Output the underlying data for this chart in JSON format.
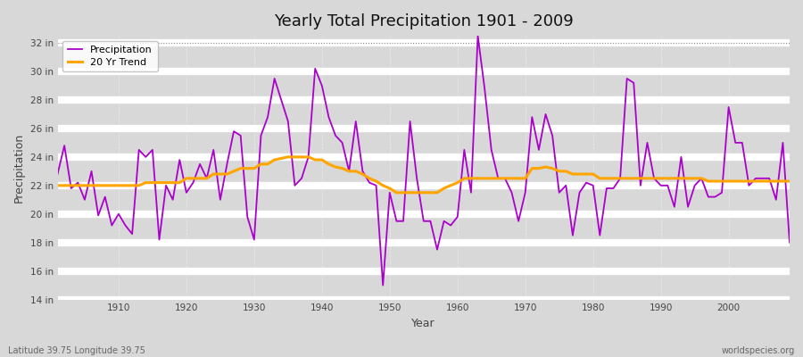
{
  "title": "Yearly Total Precipitation 1901 - 2009",
  "xlabel": "Year",
  "ylabel": "Precipitation",
  "subtitle_left": "Latitude 39.75 Longitude 39.75",
  "subtitle_right": "worldspecies.org",
  "ylim": [
    14,
    32.5
  ],
  "yticks": [
    14,
    16,
    18,
    20,
    22,
    24,
    26,
    28,
    30,
    32
  ],
  "ytick_labels": [
    "14 in",
    "16 in",
    "18 in",
    "20 in",
    "22 in",
    "24 in",
    "26 in",
    "28 in",
    "30 in",
    "32 in"
  ],
  "xticks": [
    1910,
    1920,
    1930,
    1940,
    1950,
    1960,
    1970,
    1980,
    1990,
    2000
  ],
  "fig_bg_color": "#d8d8d8",
  "plot_bg_color": "#d8d8d8",
  "precip_color": "#aa00cc",
  "trend_color": "#ffa500",
  "legend_labels": [
    "Precipitation",
    "20 Yr Trend"
  ],
  "years": [
    1901,
    1902,
    1903,
    1904,
    1905,
    1906,
    1907,
    1908,
    1909,
    1910,
    1911,
    1912,
    1913,
    1914,
    1915,
    1916,
    1917,
    1918,
    1919,
    1920,
    1921,
    1922,
    1923,
    1924,
    1925,
    1926,
    1927,
    1928,
    1929,
    1930,
    1931,
    1932,
    1933,
    1934,
    1935,
    1936,
    1937,
    1938,
    1939,
    1940,
    1941,
    1942,
    1943,
    1944,
    1945,
    1946,
    1947,
    1948,
    1949,
    1950,
    1951,
    1952,
    1953,
    1954,
    1955,
    1956,
    1957,
    1958,
    1959,
    1960,
    1961,
    1962,
    1963,
    1964,
    1965,
    1966,
    1967,
    1968,
    1969,
    1970,
    1971,
    1972,
    1973,
    1974,
    1975,
    1976,
    1977,
    1978,
    1979,
    1980,
    1981,
    1982,
    1983,
    1984,
    1985,
    1986,
    1987,
    1988,
    1989,
    1990,
    1991,
    1992,
    1993,
    1994,
    1995,
    1996,
    1997,
    1998,
    1999,
    2000,
    2001,
    2002,
    2003,
    2004,
    2005,
    2006,
    2007,
    2008,
    2009
  ],
  "precip": [
    22.8,
    24.8,
    21.8,
    22.2,
    21.0,
    23.0,
    19.9,
    21.2,
    19.2,
    20.0,
    19.2,
    18.6,
    24.5,
    24.0,
    24.5,
    18.2,
    22.0,
    21.0,
    23.8,
    21.5,
    22.2,
    23.5,
    22.5,
    24.5,
    21.0,
    23.5,
    25.8,
    25.5,
    19.8,
    18.2,
    25.5,
    26.8,
    29.5,
    28.0,
    26.5,
    22.0,
    22.5,
    24.0,
    30.2,
    29.0,
    26.8,
    25.5,
    25.0,
    23.0,
    26.5,
    23.0,
    22.2,
    22.0,
    15.0,
    21.5,
    19.5,
    19.5,
    26.5,
    22.5,
    19.5,
    19.5,
    17.5,
    19.5,
    19.2,
    19.8,
    24.5,
    21.5,
    32.5,
    28.8,
    24.5,
    22.5,
    22.5,
    21.5,
    19.5,
    21.5,
    26.8,
    24.5,
    27.0,
    25.5,
    21.5,
    22.0,
    18.5,
    21.5,
    22.2,
    22.0,
    18.5,
    21.8,
    21.8,
    22.5,
    29.5,
    29.2,
    22.0,
    25.0,
    22.5,
    22.0,
    22.0,
    20.5,
    24.0,
    20.5,
    22.0,
    22.5,
    21.2,
    21.2,
    21.5,
    27.5,
    25.0,
    25.0,
    22.0,
    22.5,
    22.5,
    22.5,
    21.0,
    25.0,
    18.0
  ],
  "trend": [
    22.0,
    22.0,
    22.0,
    22.0,
    22.0,
    22.0,
    22.0,
    22.0,
    22.0,
    22.0,
    22.0,
    22.0,
    22.0,
    22.2,
    22.2,
    22.2,
    22.2,
    22.2,
    22.2,
    22.5,
    22.5,
    22.5,
    22.5,
    22.8,
    22.8,
    22.8,
    23.0,
    23.2,
    23.2,
    23.2,
    23.5,
    23.5,
    23.8,
    23.9,
    24.0,
    24.0,
    24.0,
    24.0,
    23.8,
    23.8,
    23.5,
    23.3,
    23.2,
    23.0,
    23.0,
    22.8,
    22.5,
    22.3,
    22.0,
    21.8,
    21.5,
    21.5,
    21.5,
    21.5,
    21.5,
    21.5,
    21.5,
    21.8,
    22.0,
    22.2,
    22.5,
    22.5,
    22.5,
    22.5,
    22.5,
    22.5,
    22.5,
    22.5,
    22.5,
    22.5,
    23.2,
    23.2,
    23.3,
    23.2,
    23.0,
    23.0,
    22.8,
    22.8,
    22.8,
    22.8,
    22.5,
    22.5,
    22.5,
    22.5,
    22.5,
    22.5,
    22.5,
    22.5,
    22.5,
    22.5,
    22.5,
    22.5,
    22.5,
    22.5,
    22.5,
    22.5,
    22.3,
    22.3,
    22.3,
    22.3,
    22.3,
    22.3,
    22.3,
    22.3,
    22.3,
    22.3,
    22.3,
    22.3,
    22.3
  ]
}
